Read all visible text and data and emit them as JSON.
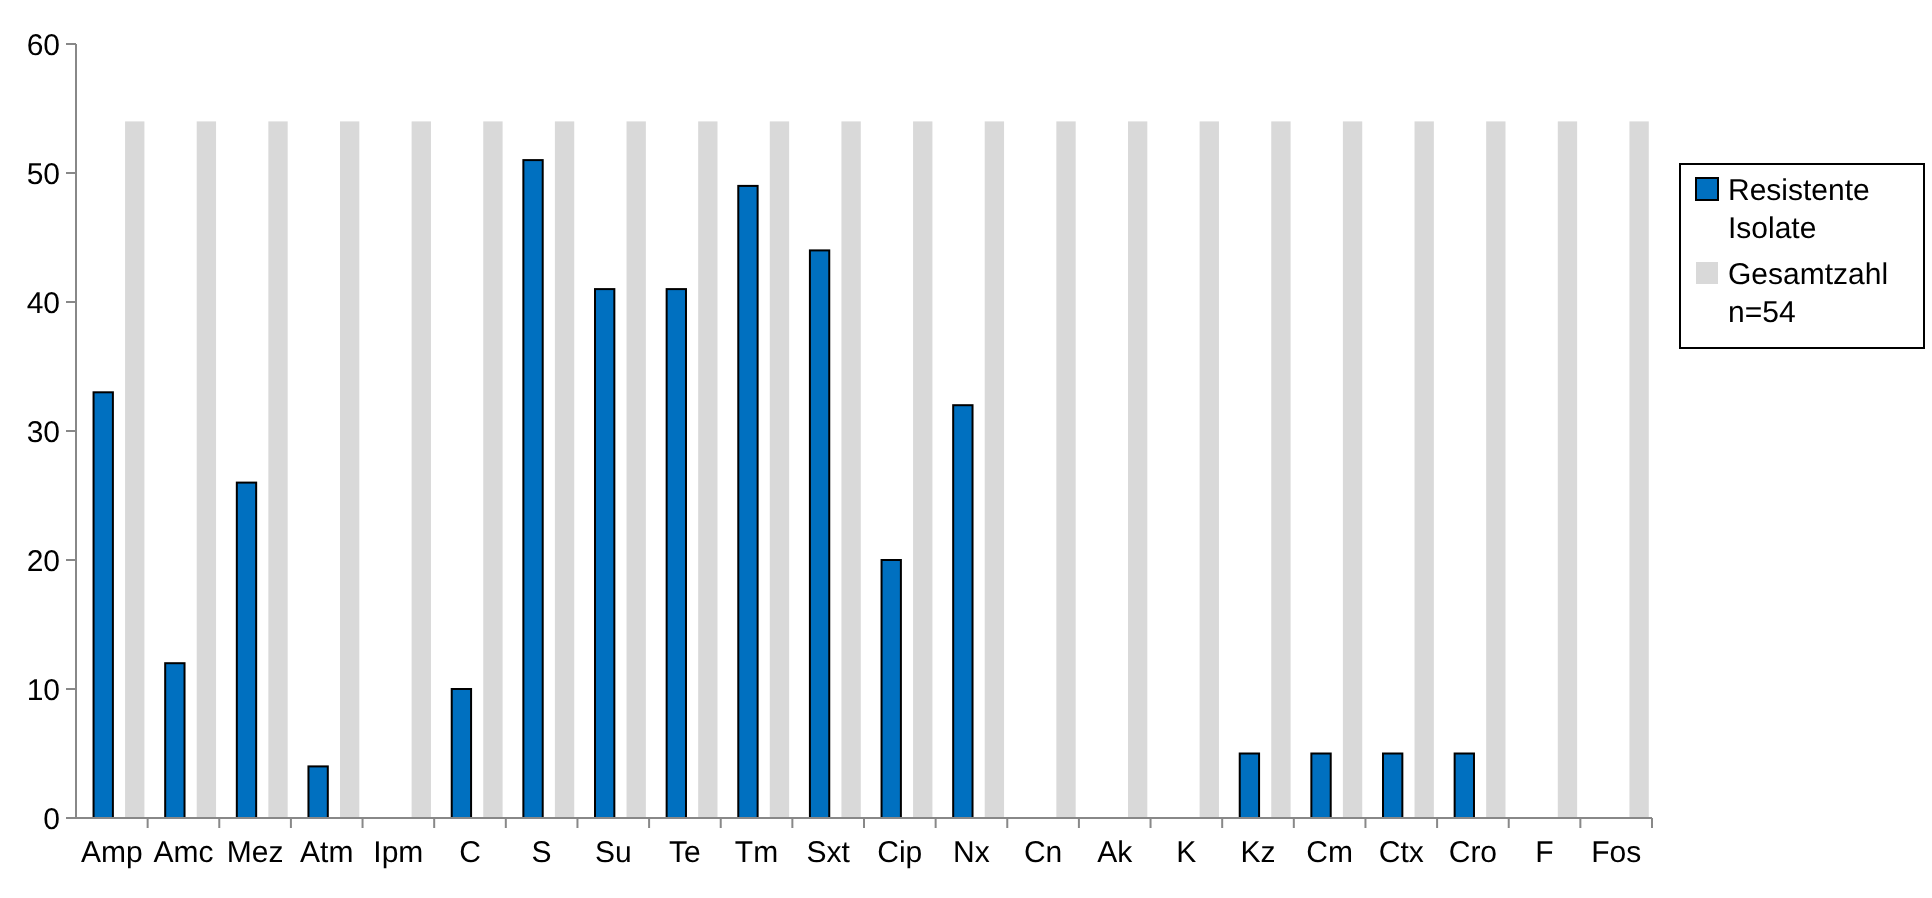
{
  "chart_data": {
    "type": "bar",
    "categories": [
      "Amp",
      "Amc",
      "Mez",
      "Atm",
      "Ipm",
      "C",
      "S",
      "Su",
      "Te",
      "Tm",
      "Sxt",
      "Cip",
      "Nx",
      "Cn",
      "Ak",
      "K",
      "Kz",
      "Cm",
      "Ctx",
      "Cro",
      "F",
      "Fos"
    ],
    "series": [
      {
        "name": "Resistente Isolate",
        "color": "#0070c0",
        "values": [
          33,
          12,
          26,
          4,
          0,
          10,
          51,
          41,
          41,
          49,
          44,
          20,
          32,
          0,
          0,
          0,
          5,
          5,
          5,
          5,
          0,
          0
        ]
      },
      {
        "name": "Gesamtzahl n=54",
        "color": "#d9d9d9",
        "values": [
          54,
          54,
          54,
          54,
          54,
          54,
          54,
          54,
          54,
          54,
          54,
          54,
          54,
          54,
          54,
          54,
          54,
          54,
          54,
          54,
          54,
          54
        ]
      }
    ],
    "ylim": [
      0,
      60
    ],
    "yticks": [
      0,
      10,
      20,
      30,
      40,
      50,
      60
    ],
    "grid": false,
    "legend": "right"
  }
}
